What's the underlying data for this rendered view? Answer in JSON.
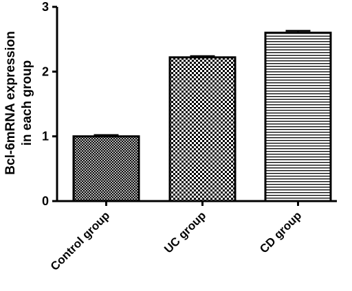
{
  "chart_data": {
    "type": "bar",
    "title": "",
    "xlabel": "",
    "ylabel": [
      "Bcl-6mRNA expression",
      "in each group"
    ],
    "categories": [
      "Control group",
      "UC group",
      "CD group"
    ],
    "values": [
      1.0,
      2.22,
      2.6
    ],
    "error": [
      0.02,
      0.02,
      0.03
    ],
    "ylim": [
      0,
      3
    ],
    "yticks": [
      "0",
      "1",
      "2",
      "3"
    ],
    "patterns": [
      "crosshatch",
      "checkerboard",
      "horizontal-lines"
    ],
    "grid": false,
    "legend": "none"
  }
}
